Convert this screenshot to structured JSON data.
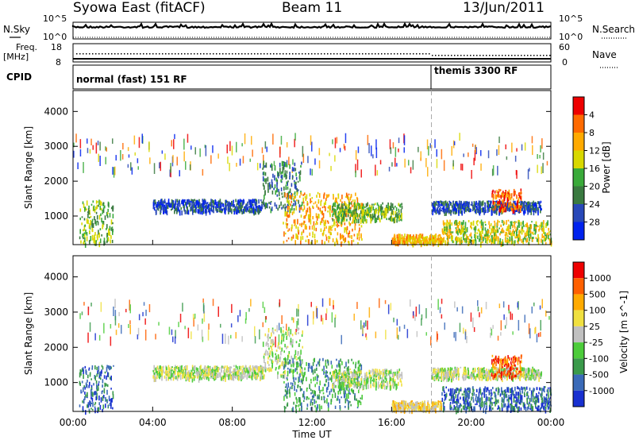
{
  "header": {
    "title": "Syowa East (fitACF)",
    "beam": "Beam 11",
    "date": "13/Jun/2011"
  },
  "noise_panel": {
    "left_label": "N.Sky",
    "right_label": "N.Search",
    "left_ticks": [
      "10^5",
      "10^0"
    ],
    "right_ticks": [
      "10^5",
      "10^0"
    ]
  },
  "freq_panel": {
    "left_label_line1": "Freq.",
    "left_label_line2": "[MHz]",
    "left_ticks": [
      "18",
      "8"
    ],
    "right_label": "Nave",
    "right_ticks": [
      "60",
      "0"
    ]
  },
  "cpid_panel": {
    "label": "CPID",
    "modes": [
      {
        "name": "normal (fast) 151 RF",
        "start_hour": 0
      },
      {
        "name": "themis 3300 RF",
        "start_hour": 18
      }
    ]
  },
  "time_axis": {
    "label": "Time UT",
    "ticks": [
      "00:00",
      "04:00",
      "08:00",
      "12:00",
      "16:00",
      "20:00",
      "00:00"
    ]
  },
  "chart_data": [
    {
      "type": "heatmap",
      "ylabel": "Slant Range [km]",
      "xlabel": "Time UT",
      "xlim_hours": [
        0,
        24
      ],
      "ylim": [
        180,
        4600
      ],
      "yticks": [
        "1000",
        "2000",
        "3000",
        "4000"
      ],
      "colorbar": {
        "label": "Power [dB]",
        "ticks": [
          "4",
          "8",
          "12",
          "16",
          "20",
          "24",
          "28"
        ],
        "colors": [
          "#0022ee",
          "#2848b8",
          "#3a7a40",
          "#3aaa3a",
          "#d8d800",
          "#ffaa00",
          "#ff6a00",
          "#ee0000"
        ]
      },
      "echo_regions": [
        {
          "time": [
            0.3,
            2.0
          ],
          "range": [
            200,
            1500
          ],
          "level": 3
        },
        {
          "time": [
            4.0,
            9.5
          ],
          "range": [
            1150,
            1500
          ],
          "level": 1
        },
        {
          "time": [
            9.5,
            11.5
          ],
          "range": [
            1200,
            2600
          ],
          "level": 2
        },
        {
          "time": [
            10.5,
            14.5
          ],
          "range": [
            250,
            1700
          ],
          "level": 5
        },
        {
          "time": [
            13.0,
            16.5
          ],
          "range": [
            900,
            1400
          ],
          "level": 3
        },
        {
          "time": [
            16.0,
            18.5
          ],
          "range": [
            250,
            500
          ],
          "level": 5
        },
        {
          "time": [
            18.0,
            23.5
          ],
          "range": [
            1150,
            1450
          ],
          "level": 1
        },
        {
          "time": [
            18.5,
            24.0
          ],
          "range": [
            250,
            900
          ],
          "level": 4
        },
        {
          "time": [
            21.0,
            22.5
          ],
          "range": [
            1200,
            1800
          ],
          "level": 6
        }
      ]
    },
    {
      "type": "heatmap",
      "ylabel": "Slant Range [km]",
      "xlabel": "Time UT",
      "xlim_hours": [
        0,
        24
      ],
      "ylim": [
        180,
        4600
      ],
      "yticks": [
        "1000",
        "2000",
        "3000",
        "4000"
      ],
      "colorbar": {
        "label": "Velocity  [m s^-1]",
        "ticks": [
          "1000",
          "500",
          "100",
          "25",
          "-25",
          "-100",
          "-500",
          "-1000"
        ],
        "colors": [
          "#1830d0",
          "#3a6ab8",
          "#3a9a4a",
          "#4ccc3a",
          "#c0c0c0",
          "#f0e040",
          "#ffaa00",
          "#ff6000",
          "#ee0000"
        ]
      },
      "echo_regions": [
        {
          "time": [
            0.3,
            2.0
          ],
          "range": [
            200,
            1500
          ],
          "level": 1
        },
        {
          "time": [
            4.0,
            9.5
          ],
          "range": [
            1150,
            1500
          ],
          "level": 4
        },
        {
          "time": [
            9.5,
            11.5
          ],
          "range": [
            1200,
            2600
          ],
          "level": 4
        },
        {
          "time": [
            10.5,
            14.5
          ],
          "range": [
            250,
            1700
          ],
          "level": 2
        },
        {
          "time": [
            13.0,
            16.5
          ],
          "range": [
            900,
            1400
          ],
          "level": 4
        },
        {
          "time": [
            16.0,
            18.5
          ],
          "range": [
            250,
            500
          ],
          "level": 5
        },
        {
          "time": [
            18.0,
            23.5
          ],
          "range": [
            1150,
            1450
          ],
          "level": 4
        },
        {
          "time": [
            18.5,
            24.0
          ],
          "range": [
            250,
            900
          ],
          "level": 1
        },
        {
          "time": [
            21.0,
            22.5
          ],
          "range": [
            1200,
            1800
          ],
          "level": 7
        }
      ]
    }
  ]
}
